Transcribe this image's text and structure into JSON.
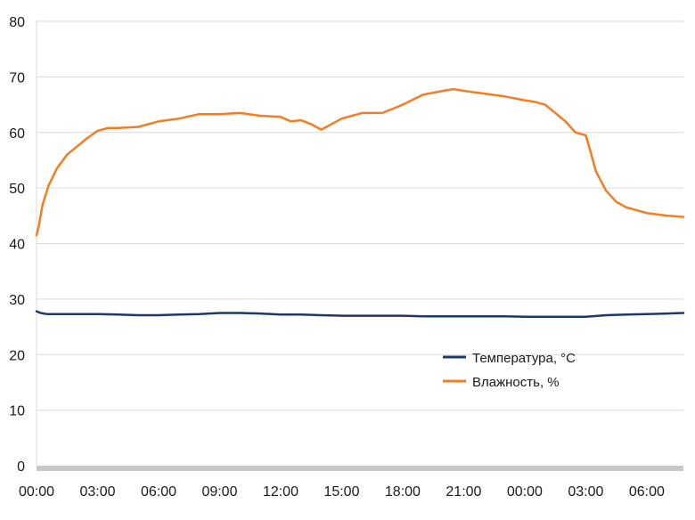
{
  "chart_data": {
    "type": "line",
    "title": "",
    "xlabel": "",
    "ylabel": "",
    "ylim": [
      0,
      80
    ],
    "y_ticks": [
      "0",
      "10",
      "20",
      "30",
      "40",
      "50",
      "60",
      "70",
      "80"
    ],
    "x_ticks": [
      "00:00",
      "03:00",
      "06:00",
      "09:00",
      "12:00",
      "15:00",
      "18:00",
      "21:00",
      "00:00",
      "03:00",
      "06:00"
    ],
    "grid": "horizontal",
    "legend_position": "lower-right",
    "x_unit": "hours since start (tick every 3 h)",
    "series": [
      {
        "name": "Температура, °C",
        "color": "#1f3864",
        "x": [
          0,
          0.2,
          0.5,
          1,
          2,
          3,
          4,
          5,
          6,
          7,
          8,
          9,
          10,
          11,
          12,
          13,
          14,
          15,
          16,
          17,
          18,
          19,
          20,
          21,
          22,
          23,
          24,
          25,
          26,
          27,
          28,
          29,
          30,
          31,
          31.8
        ],
        "y": [
          27.8,
          27.5,
          27.3,
          27.3,
          27.3,
          27.3,
          27.2,
          27.1,
          27.1,
          27.2,
          27.3,
          27.5,
          27.5,
          27.4,
          27.2,
          27.2,
          27.1,
          27.0,
          27.0,
          27.0,
          27.0,
          26.9,
          26.9,
          26.9,
          26.9,
          26.9,
          26.8,
          26.8,
          26.8,
          26.8,
          27.1,
          27.2,
          27.3,
          27.4,
          27.5
        ]
      },
      {
        "name": "Влажность, %",
        "color": "#f27d22",
        "x": [
          0,
          0.1,
          0.3,
          0.6,
          1,
          1.5,
          2,
          2.5,
          3,
          3.5,
          4,
          5,
          6,
          7,
          8,
          9,
          10,
          11,
          12,
          12.5,
          13,
          13.5,
          14,
          15,
          16,
          17,
          18,
          19,
          20,
          20.5,
          21,
          22,
          23,
          24,
          24.5,
          25,
          25.5,
          26,
          26.5,
          27,
          27.2,
          27.5,
          28,
          28.5,
          29,
          29.5,
          30,
          31,
          31.8
        ],
        "y": [
          41.5,
          43,
          47,
          50.5,
          53.5,
          56,
          57.5,
          59,
          60.3,
          60.8,
          60.8,
          61,
          62,
          62.5,
          63.3,
          63.3,
          63.5,
          63,
          62.8,
          62,
          62.2,
          61.5,
          60.5,
          62.5,
          63.5,
          63.5,
          65,
          66.8,
          67.5,
          67.8,
          67.5,
          67,
          66.5,
          65.8,
          65.5,
          65,
          63.5,
          62,
          60,
          59.5,
          57,
          53,
          49.5,
          47.5,
          46.5,
          46,
          45.5,
          45,
          44.8
        ]
      }
    ]
  }
}
